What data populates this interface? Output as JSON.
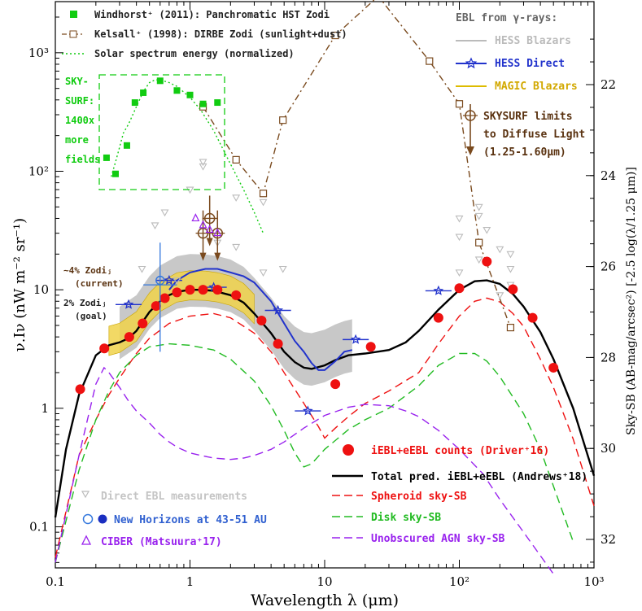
{
  "chart_data": {
    "type": "line",
    "title": "",
    "xlabel": "Wavelength λ (μm)",
    "ylabel": "ν.Iν (nW m⁻² sr⁻¹)",
    "y2label": "Sky-SB (AB-mag/arcsec²)  [-2.5 log(λ/1.25 μm)]",
    "xscale": "log",
    "yscale": "log",
    "xlim": [
      0.1,
      1000
    ],
    "ylim": [
      0.045,
      2700
    ],
    "xticks": [
      {
        "v": 0.1,
        "label": "0.1"
      },
      {
        "v": 1,
        "label": "1"
      },
      {
        "v": 10,
        "label": "10"
      },
      {
        "v": 100,
        "label": "10²"
      },
      {
        "v": 1000,
        "label": "10³"
      }
    ],
    "yticks": [
      {
        "v": 0.1,
        "label": "0.1"
      },
      {
        "v": 1,
        "label": "1"
      },
      {
        "v": 10,
        "label": "10"
      },
      {
        "v": 100,
        "label": "10²"
      },
      {
        "v": 1000,
        "label": "10³"
      }
    ],
    "y2ticks": [
      {
        "v": 22,
        "label": "22"
      },
      {
        "v": 24,
        "label": "24"
      },
      {
        "v": 26,
        "label": "26"
      },
      {
        "v": 28,
        "label": "28"
      },
      {
        "v": 30,
        "label": "30"
      },
      {
        "v": 32,
        "label": "32"
      }
    ],
    "colors": {
      "total": "#000000",
      "spheroid": "#ee1111",
      "disk": "#22bb22",
      "agn": "#9922ee",
      "counts": "#ee1111",
      "kelsall": "#7a4a1e",
      "windhorst": "#11cc11",
      "solar": "#11cc11",
      "hess_direct": "#2233cc",
      "hess_blazars": "#bbbbbb",
      "magic": "#ddbb00",
      "skysurf": "#7a4a1e",
      "direct": "#bbbbbb",
      "new_horizons": "#3377dd",
      "ciber": "#9922ee"
    },
    "series": [
      {
        "name": "Total pred. iEBL+eEBL (Andrews⁺18)",
        "key": "total",
        "style": "solid",
        "x": [
          0.1,
          0.12,
          0.15,
          0.2,
          0.25,
          0.3,
          0.35,
          0.4,
          0.5,
          0.6,
          0.7,
          0.8,
          1.0,
          1.2,
          1.5,
          2.0,
          2.5,
          3.0,
          4.0,
          5.0,
          6.0,
          7.0,
          8.0,
          10,
          12,
          15,
          20,
          30,
          40,
          50,
          70,
          100,
          130,
          160,
          200,
          250,
          300,
          400,
          500,
          700,
          1000
        ],
        "y": [
          0.12,
          0.45,
          1.3,
          2.8,
          3.4,
          3.6,
          3.9,
          4.5,
          6.5,
          8.0,
          9.0,
          9.6,
          10.0,
          10.0,
          9.8,
          9.0,
          7.8,
          6.3,
          4.3,
          3.0,
          2.45,
          2.2,
          2.15,
          2.3,
          2.55,
          2.8,
          2.9,
          3.1,
          3.6,
          4.5,
          6.8,
          10,
          11.8,
          12,
          11.2,
          9.2,
          7.2,
          4.4,
          2.6,
          1.0,
          0.27
        ]
      },
      {
        "name": "Spheroid sky-SB",
        "key": "spheroid",
        "style": "dash",
        "x": [
          0.1,
          0.15,
          0.2,
          0.25,
          0.3,
          0.4,
          0.5,
          0.7,
          1.0,
          1.5,
          2.0,
          3.0,
          4.0,
          5.0,
          7.0,
          9.0,
          10,
          12,
          15,
          20,
          30,
          50,
          70,
          100,
          130,
          160,
          200,
          250,
          300,
          400,
          500,
          700,
          1000
        ],
        "y": [
          0.055,
          0.4,
          0.8,
          1.3,
          1.8,
          2.9,
          3.9,
          5.2,
          6.0,
          6.3,
          5.8,
          4.3,
          3.0,
          2.0,
          1.1,
          0.7,
          0.56,
          0.68,
          0.85,
          1.1,
          1.4,
          2.0,
          3.5,
          6.0,
          8.0,
          8.5,
          7.9,
          6.3,
          4.9,
          2.6,
          1.5,
          0.55,
          0.15
        ]
      },
      {
        "name": "Disk sky-SB",
        "key": "disk",
        "style": "dash",
        "x": [
          0.1,
          0.15,
          0.2,
          0.25,
          0.3,
          0.4,
          0.5,
          0.7,
          1.0,
          1.5,
          2.0,
          3.0,
          4.0,
          5.0,
          6.0,
          7.0,
          8.0,
          10,
          15,
          20,
          30,
          50,
          70,
          100,
          130,
          160,
          200,
          300,
          400,
          500,
          700,
          1000
        ],
        "y": [
          0.05,
          0.3,
          0.8,
          1.4,
          2.0,
          2.8,
          3.3,
          3.5,
          3.4,
          3.1,
          2.6,
          1.7,
          1.05,
          0.65,
          0.42,
          0.32,
          0.34,
          0.45,
          0.66,
          0.8,
          1.0,
          1.55,
          2.3,
          2.9,
          2.9,
          2.5,
          1.85,
          0.9,
          0.45,
          0.22,
          0.075,
          0.022
        ]
      },
      {
        "name": "Unobscured AGN sky-SB",
        "key": "agn",
        "style": "dash",
        "x": [
          0.1,
          0.15,
          0.2,
          0.23,
          0.25,
          0.3,
          0.35,
          0.4,
          0.5,
          0.6,
          0.7,
          0.8,
          1.0,
          1.2,
          1.5,
          2.0,
          2.5,
          3.0,
          4.0,
          5.0,
          7.0,
          10,
          15,
          20,
          30,
          40,
          50,
          70,
          100,
          150,
          200,
          300,
          500,
          700,
          1000
        ],
        "y": [
          0.05,
          0.4,
          1.6,
          2.2,
          2.0,
          1.5,
          1.15,
          0.95,
          0.75,
          0.6,
          0.52,
          0.47,
          0.42,
          0.4,
          0.38,
          0.37,
          0.38,
          0.4,
          0.45,
          0.52,
          0.68,
          0.87,
          1.02,
          1.08,
          1.05,
          0.95,
          0.85,
          0.65,
          0.45,
          0.28,
          0.17,
          0.09,
          0.04,
          0.022,
          0.012
        ]
      },
      {
        "name": "HESS Direct",
        "key": "hess_direct",
        "style": "solid",
        "x": [
          0.7,
          0.8,
          1.0,
          1.3,
          1.6,
          2.0,
          2.5,
          3.0,
          4.0,
          5.0,
          6.0,
          7.0,
          8.0,
          9.0,
          10,
          12,
          14,
          16
        ],
        "y": [
          10,
          12,
          14,
          15,
          15,
          14,
          13,
          11.5,
          8.0,
          5.2,
          3.7,
          3.0,
          2.4,
          2.1,
          2.1,
          2.5,
          3.0,
          3.1
        ]
      },
      {
        "name": "Kelsall⁺ (1998): DIRBE Zodi (sunlight+dust)",
        "key": "kelsall",
        "style": "dashdot",
        "x": [
          1.25,
          2.2,
          3.5,
          4.9,
          12,
          25,
          60,
          100,
          140,
          240
        ],
        "y": [
          350,
          125,
          65,
          270,
          1400,
          3000,
          850,
          370,
          25,
          4.8
        ]
      },
      {
        "name": "Solar spectrum energy (normalized)",
        "key": "solar",
        "style": "dot",
        "x": [
          0.26,
          0.28,
          0.3,
          0.32,
          0.35,
          0.4,
          0.45,
          0.5,
          0.55,
          0.6,
          0.7,
          0.8,
          1.0,
          1.2,
          1.5,
          2.0,
          2.5,
          3.0,
          3.5
        ],
        "y": [
          90,
          120,
          160,
          210,
          250,
          350,
          470,
          560,
          590,
          590,
          560,
          520,
          420,
          330,
          220,
          115,
          70,
          45,
          30
        ]
      }
    ],
    "points": {
      "counts": {
        "name": "iEBL+eEBL counts (Driver⁺16)",
        "x": [
          0.153,
          0.231,
          0.354,
          0.445,
          0.56,
          0.65,
          0.8,
          1.0,
          1.25,
          1.6,
          2.2,
          3.4,
          4.5,
          12,
          22,
          70,
          100,
          160,
          250,
          350,
          500
        ],
        "y": [
          1.45,
          3.2,
          4.0,
          5.2,
          7.3,
          8.5,
          9.5,
          10.0,
          10.0,
          10.0,
          9.0,
          5.5,
          3.5,
          1.6,
          3.3,
          5.8,
          10.3,
          17.3,
          10.1,
          5.8,
          2.2
        ]
      },
      "windhorst": {
        "name": "Windhorst⁺ (2011): Panchromatic HST Zodi",
        "x": [
          0.24,
          0.28,
          0.34,
          0.39,
          0.45,
          0.6,
          0.8,
          1.0,
          1.25,
          1.6
        ],
        "y": [
          130,
          95,
          165,
          380,
          460,
          580,
          480,
          440,
          370,
          380
        ]
      },
      "skysurf": {
        "name": "SKYSURF limits to Diffuse Light (1.25-1.60μm)",
        "x": [
          1.25,
          1.4,
          1.6
        ],
        "y": [
          30,
          40,
          30
        ]
      },
      "direct": {
        "name": "Direct EBL measurements",
        "x": [
          0.44,
          0.55,
          0.65,
          0.8,
          1.0,
          1.25,
          1.25,
          1.6,
          2.2,
          2.2,
          3.5,
          3.5,
          4.9,
          100,
          100,
          100,
          140,
          140,
          140,
          160,
          200,
          200,
          240,
          240,
          240
        ],
        "y": [
          15,
          35,
          45,
          12,
          70,
          120,
          110,
          25,
          60,
          23,
          55,
          14,
          15,
          40,
          28,
          14,
          50,
          42,
          18,
          32,
          22,
          9,
          15,
          11,
          20
        ]
      },
      "new_horizons": {
        "name": "New Horizons at 43-51 AU",
        "x": [
          0.6
        ],
        "y": [
          11
        ],
        "open": [
          0.6
        ],
        "open_y": [
          12
        ]
      },
      "ciber": {
        "name": "CIBER (Matsuura⁺17)",
        "x": [
          1.1,
          1.25,
          1.4,
          1.6
        ],
        "y": [
          40,
          35,
          32,
          30
        ]
      }
    },
    "legend_top_left": [
      {
        "key": "windhorst",
        "text": "Windhorst⁺ (2011): Panchromatic HST Zodi"
      },
      {
        "key": "kelsall",
        "text": "Kelsall⁺ (1998): DIRBE Zodi (sunlight+dust)"
      },
      {
        "key": "solar",
        "text": "Solar spectrum energy (normalized)"
      }
    ],
    "legend_top_right": {
      "title": "EBL from γ-rays:",
      "items": [
        {
          "key": "hess_blazars",
          "text": "HESS Blazars"
        },
        {
          "key": "hess_direct",
          "text": "HESS Direct"
        },
        {
          "key": "magic",
          "text": "MAGIC Blazars"
        }
      ],
      "skysurf_lines": [
        "SKYSURF limits",
        "to Diffuse Light",
        "(1.25-1.60μm)"
      ]
    },
    "legend_bottom_right": [
      {
        "key": "counts",
        "text": "iEBL+eEBL counts (Driver⁺16)"
      },
      {
        "key": "total",
        "text": "Total pred. iEBL+eEBL (Andrews⁺18)"
      },
      {
        "key": "spheroid",
        "text": "Spheroid sky-SB"
      },
      {
        "key": "disk",
        "text": "Disk sky-SB"
      },
      {
        "key": "agn",
        "text": "Unobscured AGN sky-SB"
      }
    ],
    "legend_bottom_left": [
      {
        "key": "direct",
        "text": "Direct EBL measurements"
      },
      {
        "key": "new_horizons",
        "text": "New Horizons at 43-51 AU"
      },
      {
        "key": "ciber",
        "text": "CIBER (Matsuura⁺17)"
      }
    ],
    "annotations": {
      "skysurf_box": [
        "SKY-",
        "SURF:",
        "1400x",
        "more",
        "fields"
      ],
      "zodi_current": [
        "~4% Zodiⱼ",
        "(current)"
      ],
      "zodi_goal": [
        "2% Zodiⱼ",
        "(goal)"
      ]
    }
  }
}
